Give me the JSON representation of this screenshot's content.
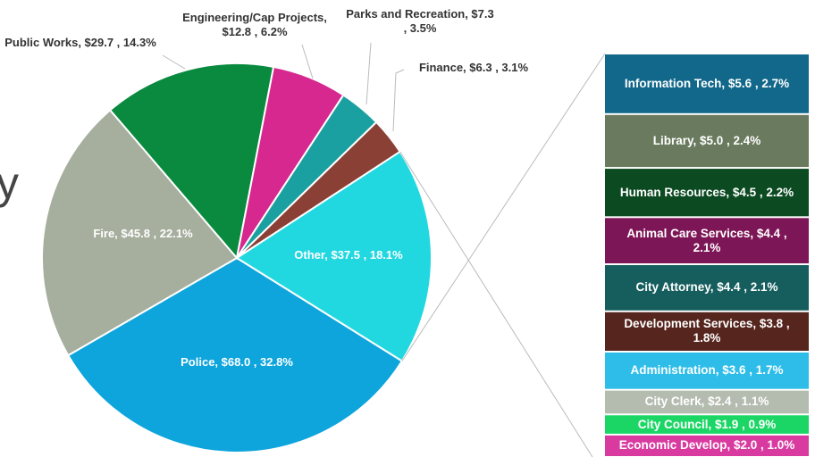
{
  "chart_data": {
    "type": "pie-of-bar",
    "title_fragment": "y",
    "pie": {
      "labels": [
        "Police, $68.0 , 32.8%",
        "Fire, $45.8 , 22.1%",
        "Public Works, $29.7 , 14.3%",
        "Engineering/Cap Projects, $12.8 , 6.2%",
        "Parks and Recreation, $7.3 , 3.5%",
        "Finance, $6.3 , 3.1%",
        "Other, $37.5 , 18.1%"
      ],
      "values": [
        68.0,
        45.8,
        29.7,
        12.8,
        7.3,
        6.3,
        37.5
      ],
      "percents": [
        32.8,
        22.1,
        14.3,
        6.2,
        3.5,
        3.1,
        18.1
      ],
      "colors": [
        "#0ea5dc",
        "#a6ae9e",
        "#0a8a3e",
        "#d6288f",
        "#1aa0a0",
        "#8b4035",
        "#22d8e0"
      ]
    },
    "bar": {
      "labels": [
        "Information Tech, $5.6 , 2.7%",
        "Library, $5.0 , 2.4%",
        "Human Resources, $4.5 , 2.2%",
        "Animal Care Services, $4.4 , 2.1%",
        "City Attorney, $4.4 , 2.1%",
        "Development Services, $3.8 , 1.8%",
        "Administration, $3.6 , 1.7%",
        "City Clerk, $2.4 , 1.1%",
        "City Council, $1.9 , 0.9%",
        "Economic Develop, $2.0 , 1.0%"
      ],
      "values": [
        5.6,
        5.0,
        4.5,
        4.4,
        4.4,
        3.8,
        3.6,
        2.4,
        1.9,
        2.0
      ],
      "percents": [
        2.7,
        2.4,
        2.2,
        2.1,
        2.1,
        1.8,
        1.7,
        1.1,
        0.9,
        1.0
      ],
      "colors": [
        "#12688a",
        "#6a7a5e",
        "#0c4a22",
        "#7d1656",
        "#165e5e",
        "#56251e",
        "#2dbde8",
        "#b4bcb0",
        "#1bd664",
        "#d83aa0"
      ]
    }
  }
}
